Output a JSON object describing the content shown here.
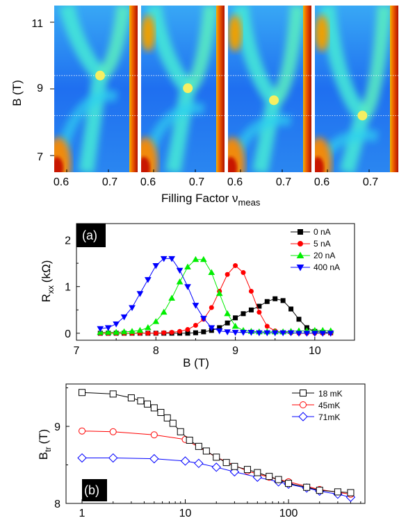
{
  "chart_data": [
    {
      "type": "heatmap",
      "panels": 4,
      "xlabel": "Filling Factor ν",
      "xlabel_sub": "meas",
      "ylabel": "B (T)",
      "xlim": [
        0.57,
        0.77
      ],
      "ylim": [
        6.5,
        11.5
      ],
      "x_ticks": [
        0.6,
        0.7
      ],
      "x_tick_labels": [
        "0.6",
        "0.7"
      ],
      "y_ticks": [
        7,
        9,
        11
      ],
      "y_tick_labels": [
        "7",
        "9",
        "11"
      ],
      "transition_points": [
        {
          "x": 0.68,
          "y": 9.4
        },
        {
          "x": 0.682,
          "y": 9.02
        },
        {
          "x": 0.68,
          "y": 8.66
        },
        {
          "x": 0.684,
          "y": 8.2
        }
      ],
      "dotted_lines": [
        9.4,
        8.2
      ],
      "colors": {
        "low": "#1f4fe0",
        "mid": "#22d3f0",
        "high": "#c51b00",
        "dot": "#f6ef62"
      }
    },
    {
      "type": "line",
      "panel_label": "(a)",
      "xlabel": "B (T)",
      "ylabel": "R",
      "ylabel_sub": "xx",
      "ylabel_unit": "(kΩ)",
      "xlim": [
        7.0,
        10.5
      ],
      "ylim": [
        -0.15,
        2.35
      ],
      "x_ticks": [
        7,
        8,
        9,
        10
      ],
      "y_ticks": [
        0,
        1,
        2
      ],
      "legend": "top-right",
      "series": [
        {
          "name": "0 nA",
          "color": "#000000",
          "marker": "square",
          "x": [
            7.3,
            7.4,
            7.5,
            7.6,
            7.7,
            7.8,
            7.9,
            8.0,
            8.1,
            8.2,
            8.3,
            8.4,
            8.5,
            8.6,
            8.7,
            8.8,
            8.9,
            9.0,
            9.1,
            9.2,
            9.3,
            9.4,
            9.5,
            9.6,
            9.7,
            9.8,
            9.9,
            10.0,
            10.1,
            10.2
          ],
          "y": [
            0,
            0,
            0,
            0,
            0,
            0,
            0,
            0,
            0,
            0,
            0,
            0,
            0.01,
            0.03,
            0.06,
            0.12,
            0.22,
            0.33,
            0.42,
            0.5,
            0.58,
            0.68,
            0.74,
            0.7,
            0.52,
            0.3,
            0.12,
            0.04,
            0.02,
            0.01
          ]
        },
        {
          "name": "5 nA",
          "color": "#ff0000",
          "marker": "circle",
          "x": [
            7.3,
            7.4,
            7.5,
            7.6,
            7.7,
            7.8,
            7.9,
            8.0,
            8.1,
            8.2,
            8.3,
            8.4,
            8.5,
            8.6,
            8.7,
            8.8,
            8.9,
            9.0,
            9.1,
            9.2,
            9.3,
            9.4,
            9.5,
            9.6,
            9.7,
            9.8,
            9.9,
            10.0,
            10.1,
            10.2
          ],
          "y": [
            0,
            0,
            0,
            0,
            0,
            0,
            0,
            0,
            0.01,
            0.02,
            0.04,
            0.08,
            0.17,
            0.3,
            0.55,
            0.9,
            1.26,
            1.45,
            1.3,
            0.9,
            0.45,
            0.15,
            0.05,
            0.02,
            0.01,
            0,
            0,
            0,
            0,
            0
          ]
        },
        {
          "name": "20 nA",
          "color": "#00ee00",
          "marker": "triangle-up",
          "x": [
            7.3,
            7.4,
            7.5,
            7.6,
            7.7,
            7.8,
            7.9,
            8.0,
            8.1,
            8.2,
            8.3,
            8.4,
            8.5,
            8.6,
            8.7,
            8.8,
            8.9,
            9.0,
            9.1,
            9.2,
            9.3,
            9.4,
            9.5,
            9.6,
            9.7,
            9.8,
            9.9,
            10.0,
            10.1,
            10.2
          ],
          "y": [
            0.02,
            0.02,
            0.02,
            0.03,
            0.04,
            0.06,
            0.12,
            0.25,
            0.45,
            0.75,
            1.1,
            1.42,
            1.58,
            1.58,
            1.3,
            0.85,
            0.42,
            0.15,
            0.06,
            0.04,
            0.03,
            0.03,
            0.03,
            0.03,
            0.04,
            0.05,
            0.05,
            0.06,
            0.06,
            0.05
          ]
        },
        {
          "name": "400 nA",
          "color": "#0000ff",
          "marker": "triangle-down",
          "x": [
            7.3,
            7.4,
            7.5,
            7.6,
            7.7,
            7.8,
            7.9,
            8.0,
            8.1,
            8.2,
            8.3,
            8.4,
            8.5,
            8.6,
            8.7,
            8.8,
            8.9,
            9.0,
            9.1,
            9.2,
            9.3,
            9.4,
            9.5,
            9.6,
            9.7,
            9.8,
            9.9,
            10.0,
            10.1,
            10.2
          ],
          "y": [
            0.1,
            0.12,
            0.2,
            0.35,
            0.55,
            0.85,
            1.15,
            1.45,
            1.6,
            1.6,
            1.35,
            1.0,
            0.6,
            0.32,
            0.12,
            0.05,
            0.03,
            0.02,
            0.02,
            0.02,
            0.01,
            0.01,
            0.01,
            0.01,
            0.01,
            0,
            0,
            0,
            0,
            0
          ]
        }
      ]
    },
    {
      "type": "line",
      "panel_label": "(b)",
      "ylabel": "B",
      "ylabel_sub": "tr",
      "ylabel_unit": "(T)",
      "x_scale": "log",
      "xlim": [
        0.7,
        550
      ],
      "ylim": [
        8.0,
        9.55
      ],
      "x_ticks": [
        1,
        10,
        100
      ],
      "x_tick_labels": [
        "1",
        "10",
        "100"
      ],
      "y_ticks": [
        8,
        9
      ],
      "legend": "top-right",
      "series": [
        {
          "name": "18 mK",
          "color": "#000000",
          "marker": "open-square",
          "x": [
            1,
            2,
            3,
            3.7,
            4.3,
            5,
            5.8,
            6.7,
            7.6,
            9,
            11,
            13.5,
            16,
            20,
            25,
            30,
            40,
            50,
            65,
            80,
            100,
            150,
            200,
            300,
            400
          ],
          "y": [
            9.44,
            9.42,
            9.37,
            9.33,
            9.29,
            9.24,
            9.18,
            9.11,
            9.04,
            8.93,
            8.82,
            8.74,
            8.68,
            8.6,
            8.53,
            8.48,
            8.44,
            8.4,
            8.35,
            8.31,
            8.26,
            8.21,
            8.17,
            8.15,
            8.14
          ]
        },
        {
          "name": "45mK",
          "color": "#ff0000",
          "marker": "open-circle",
          "x": [
            1,
            2,
            5,
            10,
            20,
            40,
            65,
            100,
            200,
            400
          ],
          "y": [
            8.94,
            8.93,
            8.89,
            8.83,
            8.6,
            8.42,
            8.34,
            8.28,
            8.18,
            8.12
          ]
        },
        {
          "name": "71mK",
          "color": "#0000ff",
          "marker": "open-diamond",
          "x": [
            1,
            2,
            5,
            10,
            13.5,
            20,
            30,
            50,
            80,
            100,
            150,
            200,
            300,
            400
          ],
          "y": [
            8.59,
            8.59,
            8.58,
            8.55,
            8.52,
            8.47,
            8.41,
            8.34,
            8.28,
            8.25,
            8.2,
            8.16,
            8.12,
            8.08
          ]
        }
      ]
    }
  ]
}
